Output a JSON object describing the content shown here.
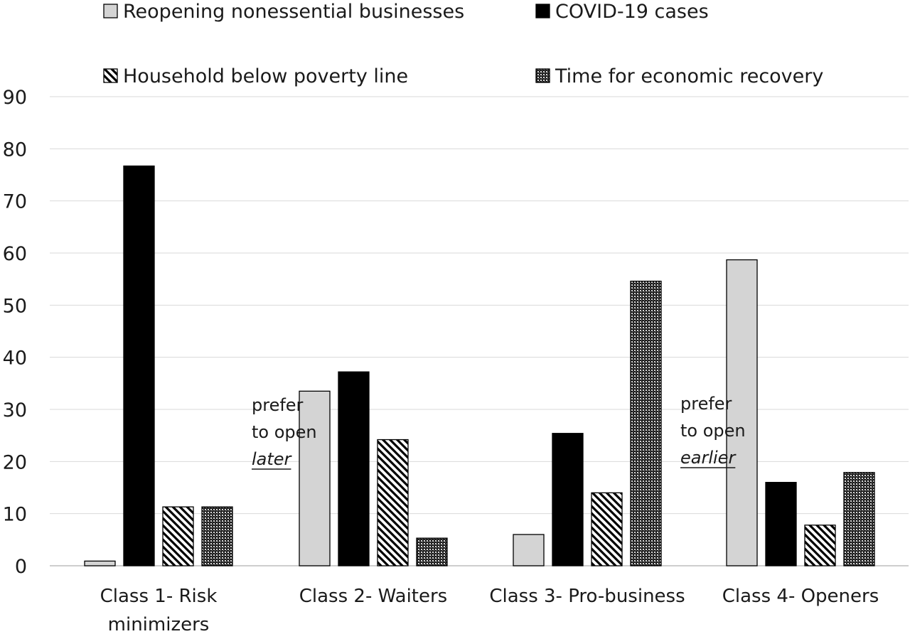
{
  "chart_data": {
    "type": "bar",
    "categories": [
      [
        "Class 1- Risk",
        "minimizers"
      ],
      [
        "Class 2- Waiters"
      ],
      [
        "Class 3- Pro-business"
      ],
      [
        "Class 4- Openers"
      ]
    ],
    "series": [
      {
        "name": "Reopening nonessential businesses",
        "color": "#d4d4d4",
        "pattern": "solid-gray",
        "values": [
          0.9,
          33.5,
          6.0,
          58.7
        ]
      },
      {
        "name": "COVID-19 cases",
        "color": "#000000",
        "pattern": "solid-black",
        "values": [
          76.7,
          37.2,
          25.4,
          16.0
        ]
      },
      {
        "name": "Household below poverty line",
        "color": "#ffffff",
        "pattern": "diagonal-hatch",
        "values": [
          11.3,
          24.2,
          14.0,
          7.8
        ]
      },
      {
        "name": "Time for economic recovery",
        "color": "#555555",
        "pattern": "dense-dots",
        "values": [
          11.3,
          5.3,
          54.6,
          17.9
        ]
      }
    ],
    "yticks": [
      "0",
      "10",
      "20",
      "30",
      "40",
      "50",
      "60",
      "70",
      "80",
      "90"
    ],
    "ylim": [
      0,
      90
    ],
    "grid": true,
    "legend": "top",
    "annotations": [
      {
        "lines": [
          "prefer",
          "to open"
        ],
        "emphasis": "later",
        "between": [
          0,
          1
        ]
      },
      {
        "lines": [
          "prefer",
          "to open"
        ],
        "emphasis": "earlier",
        "between": [
          2,
          3
        ]
      }
    ],
    "title": "",
    "xlabel": "",
    "ylabel": ""
  }
}
